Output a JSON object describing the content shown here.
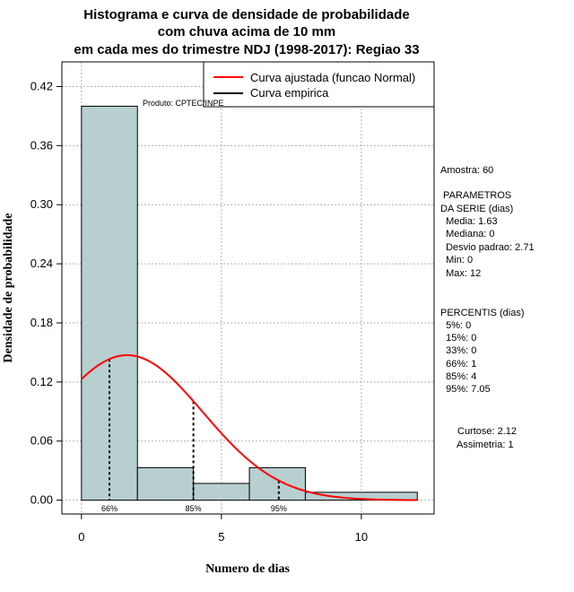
{
  "chart_data": {
    "type": "bar",
    "title": [
      "Histograma e curva de densidade de probabilidade",
      "com chuva acima de 10 mm",
      "em cada mes do trimestre NDJ (1998-2017): Regiao 33"
    ],
    "xlabel": "Numero de dias",
    "ylabel": "Densidade de probabilidade",
    "xlim": [
      -0.7,
      12.6
    ],
    "ylim": [
      -0.014,
      0.445
    ],
    "x_ticks": [
      0,
      5,
      10
    ],
    "y_ticks": [
      "0.00",
      "0.06",
      "0.12",
      "0.18",
      "0.24",
      "0.30",
      "0.36",
      "0.42"
    ],
    "grid": true,
    "bars": [
      {
        "x0": 0,
        "x1": 2,
        "density": 0.4
      },
      {
        "x0": 2,
        "x1": 4,
        "density": 0.033
      },
      {
        "x0": 4,
        "x1": 6,
        "density": 0.017
      },
      {
        "x0": 6,
        "x1": 8,
        "density": 0.033
      },
      {
        "x0": 8,
        "x1": 12,
        "density": 0.008
      }
    ],
    "bar_color": "#b7cfcf",
    "curve_color": "#ff0000",
    "normal_fit": {
      "mean": 1.63,
      "sd": 2.71,
      "x_range": [
        0,
        12
      ]
    },
    "percentile_lines": [
      {
        "label": "66%",
        "x": 1
      },
      {
        "label": "85%",
        "x": 4
      },
      {
        "label": "95%",
        "x": 7.05
      }
    ],
    "legend": {
      "position": "top-right",
      "items": [
        {
          "label": "Curva ajustada (funcao Normal)",
          "color": "#ff0000"
        },
        {
          "label": "Curva empirica",
          "color": "#000000"
        }
      ]
    },
    "source_note": "Produto: CPTEC/INPE"
  },
  "side_panel": {
    "amostra": "Amostra: 60",
    "params_lines": [
      " PARAMETROS",
      "DA SERIE (dias)",
      "  Media: 1.63",
      "  Mediana: 0",
      "  Desvio padrao: 2.71",
      "  Min: 0",
      "  Max: 12"
    ],
    "percentis_lines": [
      "PERCENTIS (dias)",
      "  5%: 0",
      "  15%: 0",
      "  33%: 0",
      "  66%: 1",
      "  85%: 4",
      "  95%: 7.05"
    ],
    "curtose": "Curtose: 2.12",
    "assimetria": "Assimetria: 1"
  }
}
